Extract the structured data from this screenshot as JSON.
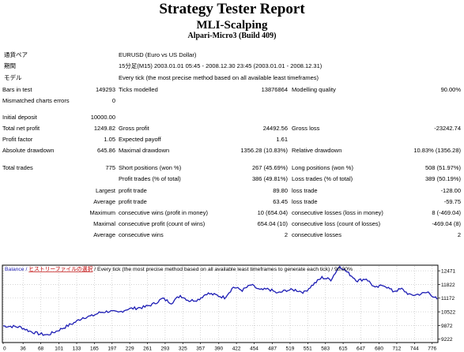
{
  "report": {
    "title": "Strategy Tester Report",
    "subtitle": "MLI-Scalping",
    "account": "Alpari-Micro3 (Build 409)"
  },
  "settings": [
    {
      "label": "通貨ペア",
      "value": "EURUSD (Euro vs US Dollar)"
    },
    {
      "label": "期間",
      "value": "15分足(M15) 2003.01.01 05:45 - 2008.12.30 23:45 (2003.01.01 - 2008.12.31)"
    },
    {
      "label": "モデル",
      "value": "Every tick (the most precise method based on all available least timeframes)"
    }
  ],
  "summary": {
    "bars_in_test": {
      "label": "Bars in test",
      "value": "149293"
    },
    "ticks_modelled": {
      "label": "Ticks modelled",
      "value": "13876864"
    },
    "modelling_quality": {
      "label": "Modelling quality",
      "value": "90.00%"
    },
    "mismatched": {
      "label": "Mismatched charts errors",
      "value": "0"
    },
    "initial_deposit": {
      "label": "Initial deposit",
      "value": "10000.00"
    },
    "total_net_profit": {
      "label": "Total net profit",
      "value": "1249.82"
    },
    "gross_profit": {
      "label": "Gross profit",
      "value": "24492.56"
    },
    "gross_loss": {
      "label": "Gross loss",
      "value": "-23242.74"
    },
    "profit_factor": {
      "label": "Profit factor",
      "value": "1.05"
    },
    "expected_payoff": {
      "label": "Expected payoff",
      "value": "1.61"
    },
    "absolute_drawdown": {
      "label": "Absolute drawdown",
      "value": "645.86"
    },
    "maximal_drawdown": {
      "label": "Maximal drawdown",
      "value": "1356.28 (10.83%)"
    },
    "relative_drawdown": {
      "label": "Relative drawdown",
      "value": "10.83% (1356.28)"
    },
    "total_trades": {
      "label": "Total trades",
      "value": "775"
    },
    "short_positions": {
      "label": "Short positions (won %)",
      "value": "267 (45.69%)"
    },
    "long_positions": {
      "label": "Long positions (won %)",
      "value": "508 (51.97%)"
    },
    "profit_trades": {
      "label": "Profit trades (% of total)",
      "value": "386 (49.81%)"
    },
    "loss_trades": {
      "label": "Loss trades (% of total)",
      "value": "389 (50.19%)"
    },
    "largest": {
      "label": "Largest",
      "profit_label": "profit trade",
      "profit": "89.80",
      "loss_label": "loss trade",
      "loss": "-128.00"
    },
    "average": {
      "label": "Average",
      "profit_label": "profit trade",
      "profit": "63.45",
      "loss_label": "loss trade",
      "loss": "-59.75"
    },
    "maximum": {
      "label": "Maximum",
      "wins_label": "consecutive wins (profit in money)",
      "wins": "10 (654.04)",
      "losses_label": "consecutive losses (loss in money)",
      "losses": "8 (-469.04)"
    },
    "maximal": {
      "label": "Maximal",
      "profit_label": "consecutive profit (count of wins)",
      "profit": "654.04 (10)",
      "loss_label": "consecutive loss (count of losses)",
      "loss": "-469.04 (8)"
    },
    "average_consec": {
      "label": "Average",
      "wins_label": "consecutive wins",
      "wins": "2",
      "losses_label": "consecutive losses",
      "losses": "2"
    }
  },
  "chart_data": {
    "type": "line",
    "legend": {
      "series_name": "Balance",
      "separator": " / ",
      "history_label": "ヒストリーファイルの選択",
      "text_after": " / Every tick (the most precise method based on all available least timeframes to generate each tick) / 90.00%"
    },
    "colors": {
      "series": "#1c1cb4",
      "history": "#c00000",
      "grid": "#bbbbbb"
    },
    "x_ticks": [
      "0",
      "36",
      "68",
      "101",
      "133",
      "165",
      "197",
      "229",
      "261",
      "293",
      "325",
      "357",
      "390",
      "422",
      "454",
      "487",
      "519",
      "551",
      "583",
      "615",
      "647",
      "680",
      "712",
      "744",
      "776"
    ],
    "y_ticks": [
      "12471",
      "11822",
      "11172",
      "10522",
      "9872",
      "9222"
    ],
    "ylim": [
      9100,
      12700
    ],
    "xlim": [
      0,
      785
    ],
    "y_values_approx": [
      9850,
      9830,
      9790,
      9600,
      9480,
      9420,
      9600,
      9800,
      10000,
      10250,
      10320,
      10500,
      10550,
      10480,
      10650,
      10700,
      10750,
      10900,
      11150,
      10950,
      11300,
      11050,
      11100,
      11400,
      11320,
      11200,
      11700,
      11550,
      11800,
      11550,
      11600,
      11400,
      11550,
      11560,
      11450,
      11820,
      12150,
      12050,
      12700,
      12350,
      12000,
      12100,
      11650,
      11800,
      11500,
      11600,
      11300,
      11360,
      11450,
      11120
    ]
  }
}
